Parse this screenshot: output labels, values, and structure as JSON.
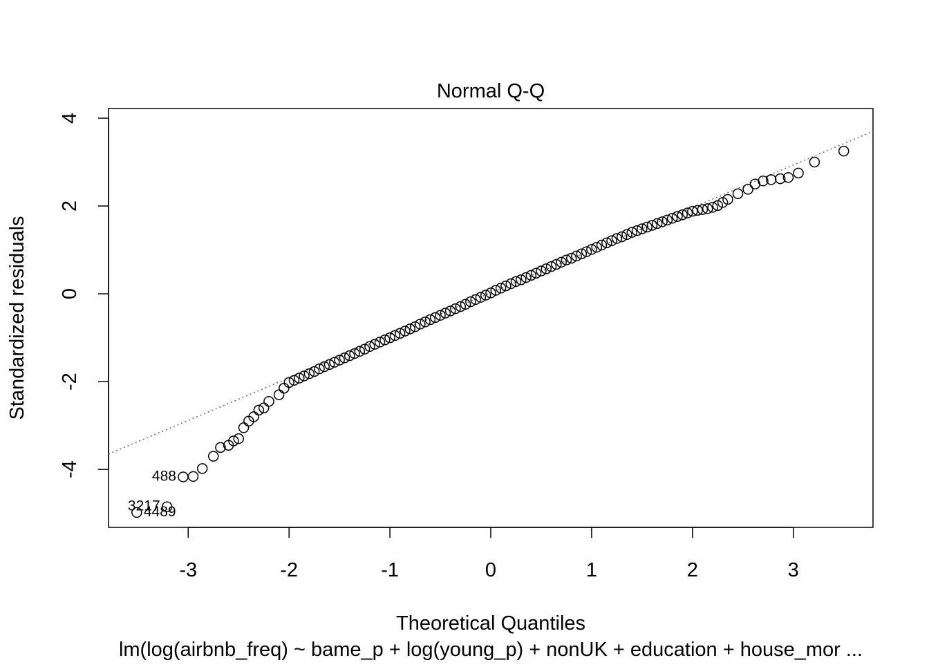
{
  "chart_data": {
    "type": "scatter",
    "title": "Normal Q-Q",
    "x_label": "Theoretical Quantiles",
    "y_label": "Standardized residuals",
    "subtitle": "lm(log(airbnb_freq) ~ bame_p + log(young_p) + nonUK + education + house_mor ...",
    "xlim": [
      -3.79,
      3.79
    ],
    "ylim": [
      -5.32,
      4.22
    ],
    "xticks": [
      -3,
      -2,
      -1,
      0,
      1,
      2,
      3
    ],
    "yticks": [
      -4,
      -2,
      0,
      2,
      4
    ],
    "color": "#000000",
    "marker": "open-circle",
    "reference_line": {
      "x": [
        -3.79,
        3.79
      ],
      "y": [
        -3.65,
        3.7
      ],
      "color": "#666666",
      "style": "dotted"
    },
    "annotations": [
      {
        "text": "488",
        "x": -3.05,
        "y": -4.17,
        "side": "left"
      },
      {
        "text": "3217",
        "x": -3.21,
        "y": -4.85,
        "side": "left"
      },
      {
        "text": "4489",
        "x": -3.51,
        "y": -4.98,
        "side": "right"
      }
    ],
    "x": [
      -3.51,
      -3.21,
      -3.05,
      -2.95,
      -2.86,
      -2.75,
      -2.68,
      -2.6,
      -2.55,
      -2.5,
      -2.45,
      -2.4,
      -2.35,
      -2.3,
      -2.25,
      -2.2,
      -2.1,
      -2.05,
      -2.0,
      -1.95,
      -1.9,
      -1.85,
      -1.8,
      -1.75,
      -1.7,
      -1.65,
      -1.6,
      -1.55,
      -1.5,
      -1.45,
      -1.4,
      -1.35,
      -1.3,
      -1.25,
      -1.2,
      -1.15,
      -1.1,
      -1.05,
      -1.0,
      -0.95,
      -0.9,
      -0.85,
      -0.8,
      -0.75,
      -0.7,
      -0.65,
      -0.6,
      -0.55,
      -0.5,
      -0.45,
      -0.4,
      -0.35,
      -0.3,
      -0.25,
      -0.2,
      -0.15,
      -0.1,
      -0.05,
      0,
      0.05,
      0.1,
      0.15,
      0.2,
      0.25,
      0.3,
      0.35,
      0.4,
      0.45,
      0.5,
      0.55,
      0.6,
      0.65,
      0.7,
      0.75,
      0.8,
      0.85,
      0.9,
      0.95,
      1.0,
      1.05,
      1.1,
      1.15,
      1.2,
      1.25,
      1.3,
      1.35,
      1.4,
      1.45,
      1.5,
      1.55,
      1.6,
      1.65,
      1.7,
      1.75,
      1.8,
      1.85,
      1.9,
      1.95,
      2.0,
      2.05,
      2.1,
      2.15,
      2.2,
      2.25,
      2.3,
      2.35,
      2.45,
      2.55,
      2.62,
      2.7,
      2.78,
      2.87,
      2.95,
      3.05,
      3.21,
      3.5
    ],
    "values": [
      -4.98,
      -4.85,
      -4.17,
      -4.16,
      -3.98,
      -3.7,
      -3.5,
      -3.45,
      -3.35,
      -3.3,
      -3.05,
      -2.9,
      -2.8,
      -2.65,
      -2.6,
      -2.45,
      -2.3,
      -2.15,
      -2.02,
      -1.97,
      -1.92,
      -1.87,
      -1.82,
      -1.77,
      -1.71,
      -1.66,
      -1.61,
      -1.56,
      -1.51,
      -1.46,
      -1.41,
      -1.36,
      -1.31,
      -1.26,
      -1.2,
      -1.15,
      -1.1,
      -1.05,
      -1.0,
      -0.95,
      -0.9,
      -0.85,
      -0.8,
      -0.75,
      -0.69,
      -0.64,
      -0.59,
      -0.54,
      -0.49,
      -0.44,
      -0.39,
      -0.34,
      -0.29,
      -0.24,
      -0.18,
      -0.13,
      -0.08,
      -0.03,
      0.02,
      0.08,
      0.13,
      0.18,
      0.23,
      0.28,
      0.32,
      0.37,
      0.42,
      0.47,
      0.52,
      0.57,
      0.62,
      0.67,
      0.72,
      0.77,
      0.81,
      0.86,
      0.91,
      0.96,
      1.01,
      1.06,
      1.11,
      1.16,
      1.21,
      1.26,
      1.3,
      1.35,
      1.4,
      1.44,
      1.48,
      1.52,
      1.56,
      1.6,
      1.64,
      1.68,
      1.72,
      1.76,
      1.8,
      1.84,
      1.88,
      1.9,
      1.92,
      1.94,
      1.97,
      2.01,
      2.08,
      2.15,
      2.28,
      2.38,
      2.5,
      2.57,
      2.6,
      2.62,
      2.65,
      2.75,
      3.0,
      3.25
    ]
  }
}
